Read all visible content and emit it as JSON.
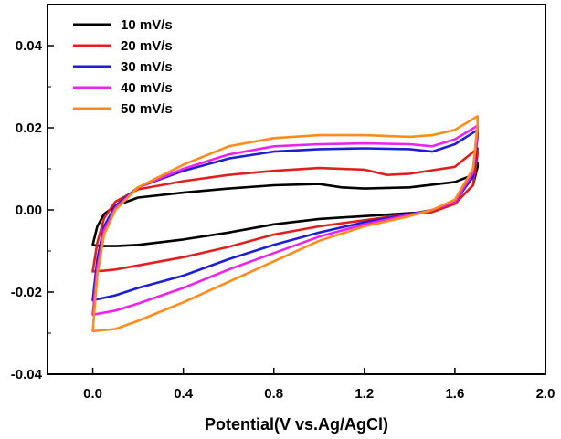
{
  "chart_data": {
    "type": "line",
    "title": "",
    "xlabel": "Potential(V vs.Ag/AgCl)",
    "ylabel": "",
    "xlim": [
      -0.2,
      2.0
    ],
    "ylim": [
      -0.04,
      0.05
    ],
    "x_ticks": [
      0.0,
      0.4,
      0.8,
      1.2,
      1.6,
      2.0
    ],
    "x_tick_labels": [
      "0.0",
      "0.4",
      "0.8",
      "1.2",
      "1.6",
      "2.0"
    ],
    "y_ticks": [
      -0.04,
      -0.02,
      0.0,
      0.02,
      0.04
    ],
    "y_tick_labels": [
      "-0.04",
      "-0.02",
      "0.00",
      "0.02",
      "0.04"
    ],
    "grid": false,
    "legend_position": "top-left",
    "series": [
      {
        "name": "10 mV/s",
        "color": "#000000",
        "x": [
          0.0,
          0.02,
          0.05,
          0.1,
          0.2,
          0.4,
          0.6,
          0.8,
          1.0,
          1.1,
          1.2,
          1.4,
          1.6,
          1.68,
          1.7,
          1.7,
          1.68,
          1.6,
          1.5,
          1.4,
          1.2,
          1.0,
          0.8,
          0.6,
          0.4,
          0.2,
          0.1,
          0.05,
          0.02,
          0.0,
          0.0
        ],
        "y": [
          -0.0085,
          -0.004,
          -0.001,
          0.001,
          0.003,
          0.0042,
          0.0052,
          0.006,
          0.0063,
          0.0055,
          0.0052,
          0.0055,
          0.0068,
          0.0085,
          0.0115,
          0.0105,
          0.006,
          0.0015,
          -0.0005,
          -0.0008,
          -0.0015,
          -0.0022,
          -0.0035,
          -0.0055,
          -0.0072,
          -0.0085,
          -0.0088,
          -0.0088,
          -0.0087,
          -0.0085,
          -0.0085
        ]
      },
      {
        "name": "20 mV/s",
        "color": "#e02020",
        "x": [
          0.0,
          0.02,
          0.05,
          0.1,
          0.2,
          0.4,
          0.6,
          0.8,
          1.0,
          1.2,
          1.3,
          1.4,
          1.6,
          1.7,
          1.7,
          1.68,
          1.6,
          1.5,
          1.4,
          1.2,
          1.0,
          0.8,
          0.6,
          0.4,
          0.2,
          0.1,
          0.05,
          0.0,
          0.0
        ],
        "y": [
          -0.015,
          -0.008,
          -0.002,
          0.002,
          0.005,
          0.007,
          0.0085,
          0.0095,
          0.0102,
          0.0098,
          0.0085,
          0.0088,
          0.0105,
          0.015,
          0.0135,
          0.006,
          0.0015,
          -0.0005,
          -0.001,
          -0.0025,
          -0.004,
          -0.006,
          -0.009,
          -0.0115,
          -0.0135,
          -0.0145,
          -0.0148,
          -0.015,
          -0.015
        ]
      },
      {
        "name": "30 mV/s",
        "color": "#1e1ed2",
        "x": [
          0.0,
          0.02,
          0.05,
          0.1,
          0.2,
          0.4,
          0.6,
          0.8,
          1.0,
          1.2,
          1.4,
          1.5,
          1.6,
          1.7,
          1.7,
          1.68,
          1.6,
          1.5,
          1.4,
          1.2,
          1.0,
          0.8,
          0.6,
          0.4,
          0.2,
          0.1,
          0.0,
          0.0
        ],
        "y": [
          -0.022,
          -0.012,
          -0.004,
          0.001,
          0.0055,
          0.0095,
          0.0125,
          0.0142,
          0.0148,
          0.015,
          0.0148,
          0.0142,
          0.016,
          0.0195,
          0.018,
          0.008,
          0.002,
          0.0,
          -0.001,
          -0.003,
          -0.0055,
          -0.0085,
          -0.012,
          -0.016,
          -0.019,
          -0.0208,
          -0.022,
          -0.022
        ]
      },
      {
        "name": "40 mV/s",
        "color": "#ee22ee",
        "x": [
          0.0,
          0.02,
          0.05,
          0.1,
          0.2,
          0.4,
          0.6,
          0.8,
          1.0,
          1.2,
          1.4,
          1.5,
          1.6,
          1.7,
          1.7,
          1.68,
          1.6,
          1.5,
          1.4,
          1.2,
          1.0,
          0.8,
          0.6,
          0.4,
          0.2,
          0.1,
          0.0,
          0.0
        ],
        "y": [
          -0.0255,
          -0.014,
          -0.005,
          0.0005,
          0.0055,
          0.01,
          0.0135,
          0.0155,
          0.016,
          0.0162,
          0.016,
          0.0155,
          0.0172,
          0.0205,
          0.019,
          0.009,
          0.002,
          0.0,
          -0.0012,
          -0.0035,
          -0.0065,
          -0.0105,
          -0.0145,
          -0.019,
          -0.0228,
          -0.0245,
          -0.0255,
          -0.0255
        ]
      },
      {
        "name": "50 mV/s",
        "color": "#ff8c1a",
        "x": [
          0.0,
          0.02,
          0.05,
          0.1,
          0.2,
          0.4,
          0.6,
          0.8,
          1.0,
          1.2,
          1.4,
          1.5,
          1.6,
          1.7,
          1.7,
          1.68,
          1.6,
          1.5,
          1.4,
          1.2,
          1.0,
          0.8,
          0.6,
          0.4,
          0.2,
          0.1,
          0.0,
          0.0
        ],
        "y": [
          -0.0295,
          -0.016,
          -0.006,
          0.0,
          0.0055,
          0.011,
          0.0155,
          0.0175,
          0.0182,
          0.0182,
          0.0178,
          0.0182,
          0.0195,
          0.0228,
          0.021,
          0.01,
          0.0025,
          0.0,
          -0.0015,
          -0.004,
          -0.0075,
          -0.0125,
          -0.0175,
          -0.0225,
          -0.027,
          -0.029,
          -0.0295,
          -0.0295
        ]
      }
    ]
  }
}
